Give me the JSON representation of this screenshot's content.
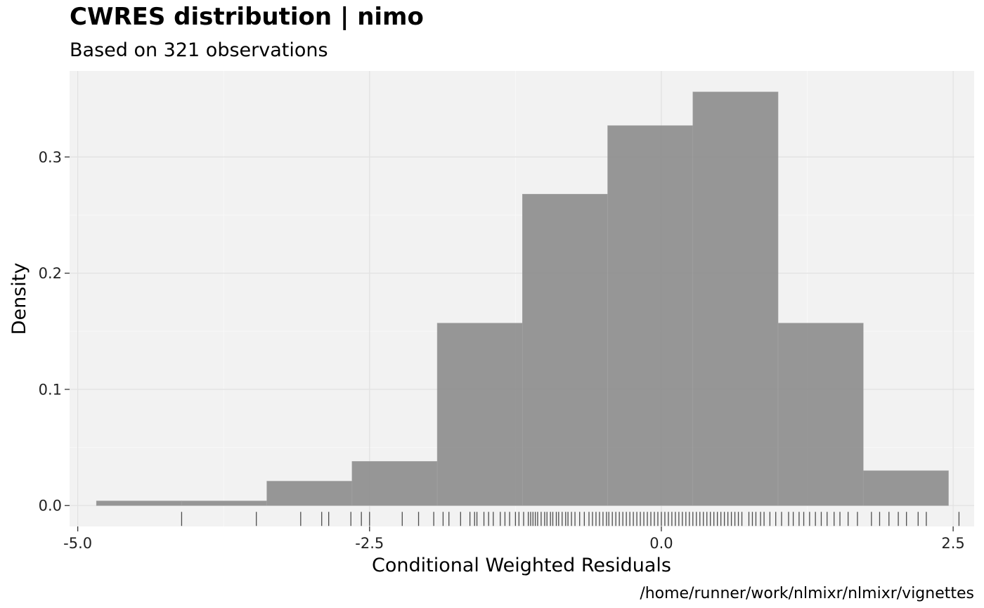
{
  "chart_data": {
    "type": "bar",
    "subtype": "histogram-with-rug",
    "title": "CWRES distribution | nimo",
    "subtitle": "Based on 321 observations",
    "xlabel": "Conditional Weighted Residuals",
    "ylabel": "Density",
    "caption": "/home/runner/work/nlmixr/nlmixr/vignettes",
    "xlim": [
      -5.07,
      2.68
    ],
    "ylim": [
      -0.018,
      0.374
    ],
    "x_ticks": [
      -5.0,
      -2.5,
      0.0,
      2.5
    ],
    "x_tick_labels": [
      "-5.0",
      "-2.5",
      "0.0",
      "2.5"
    ],
    "y_ticks": [
      0.0,
      0.1,
      0.2,
      0.3
    ],
    "y_tick_labels": [
      "0.0",
      "0.1",
      "0.2",
      "0.3"
    ],
    "grid": true,
    "legend": "none",
    "bins": [
      {
        "x0": -4.84,
        "x1": -4.11,
        "density": 0.004
      },
      {
        "x0": -4.11,
        "x1": -3.38,
        "density": 0.004
      },
      {
        "x0": -3.38,
        "x1": -2.65,
        "density": 0.021
      },
      {
        "x0": -2.65,
        "x1": -1.92,
        "density": 0.038
      },
      {
        "x0": -1.92,
        "x1": -1.19,
        "density": 0.157
      },
      {
        "x0": -1.19,
        "x1": -0.46,
        "density": 0.268
      },
      {
        "x0": -0.46,
        "x1": 0.27,
        "density": 0.327
      },
      {
        "x0": 0.27,
        "x1": 1.0,
        "density": 0.356
      },
      {
        "x0": 1.0,
        "x1": 1.73,
        "density": 0.157
      },
      {
        "x0": 1.73,
        "x1": 2.46,
        "density": 0.03
      }
    ],
    "rug": [
      -4.11,
      -3.47,
      -3.09,
      -2.91,
      -2.85,
      -2.66,
      -2.57,
      -2.5,
      -2.22,
      -2.08,
      -1.95,
      -1.87,
      -1.82,
      -1.72,
      -1.64,
      -1.6,
      -1.58,
      -1.52,
      -1.48,
      -1.44,
      -1.38,
      -1.34,
      -1.3,
      -1.25,
      -1.22,
      -1.18,
      -1.14,
      -1.12,
      -1.1,
      -1.08,
      -1.06,
      -1.03,
      -1.0,
      -0.98,
      -0.95,
      -0.93,
      -0.9,
      -0.88,
      -0.85,
      -0.82,
      -0.8,
      -0.77,
      -0.74,
      -0.7,
      -0.66,
      -0.62,
      -0.59,
      -0.56,
      -0.53,
      -0.5,
      -0.47,
      -0.45,
      -0.42,
      -0.39,
      -0.36,
      -0.33,
      -0.3,
      -0.27,
      -0.24,
      -0.21,
      -0.18,
      -0.15,
      -0.12,
      -0.09,
      -0.06,
      -0.03,
      0.0,
      0.03,
      0.06,
      0.09,
      0.12,
      0.15,
      0.18,
      0.21,
      0.24,
      0.27,
      0.3,
      0.33,
      0.36,
      0.39,
      0.42,
      0.45,
      0.48,
      0.51,
      0.54,
      0.57,
      0.6,
      0.63,
      0.66,
      0.69,
      0.75,
      0.78,
      0.81,
      0.85,
      0.88,
      0.93,
      0.98,
      1.03,
      1.09,
      1.13,
      1.18,
      1.22,
      1.27,
      1.32,
      1.37,
      1.42,
      1.48,
      1.53,
      1.6,
      1.68,
      1.8,
      1.87,
      1.95,
      2.03,
      2.1,
      2.2,
      2.27,
      2.55
    ]
  }
}
